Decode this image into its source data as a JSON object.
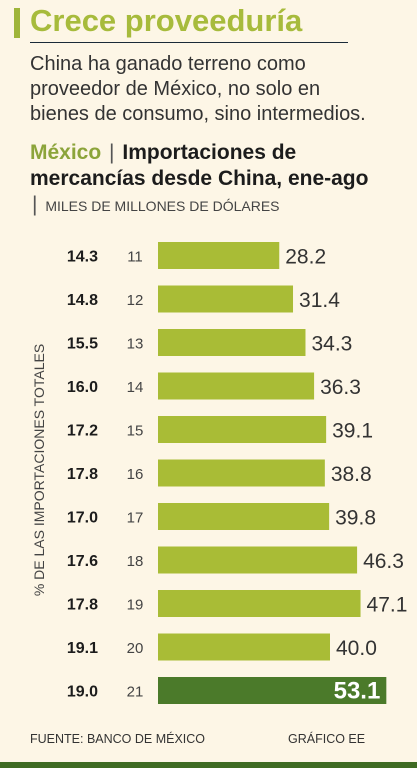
{
  "header": {
    "title": "Crece proveeduría",
    "lead": "China ha ganado terreno como proveedor de México, no solo en bienes de consumo, sino intermedios."
  },
  "chart_title": {
    "country": "México",
    "separator": "|",
    "title": "Importaciones de mercancías desde China, ene-ago",
    "unit_separator": "|",
    "unit": "MILES DE MILLONES DE DÓLARES"
  },
  "footer": {
    "source": "FUENTE: BANCO DE MÉXICO",
    "credit": "GRÁFICO EE"
  },
  "colors": {
    "bar": "#a9bc36",
    "bar_highlight": "#4b7a2a",
    "accent": "#a7bb3c",
    "background": "#fdf6e6"
  },
  "chart_data": {
    "type": "bar",
    "orientation": "horizontal",
    "categories": [
      "11",
      "12",
      "13",
      "14",
      "15",
      "16",
      "17",
      "18",
      "19",
      "20",
      "21"
    ],
    "values": [
      28.2,
      31.4,
      34.3,
      36.3,
      39.1,
      38.8,
      39.8,
      46.3,
      47.1,
      40.0,
      53.1
    ],
    "value_labels": [
      "28.2",
      "31.4",
      "34.3",
      "36.3",
      "39.1",
      "38.8",
      "39.8",
      "46.3",
      "47.1",
      "40.0",
      "53.1"
    ],
    "share_of_total_imports": [
      "14.3",
      "14.8",
      "15.5",
      "16.0",
      "17.2",
      "17.8",
      "17.0",
      "17.6",
      "17.8",
      "19.1",
      "19.0"
    ],
    "side_axis_label": "% DE LAS IMPORTACIONES TOTALES",
    "highlight_category": "21"
  }
}
